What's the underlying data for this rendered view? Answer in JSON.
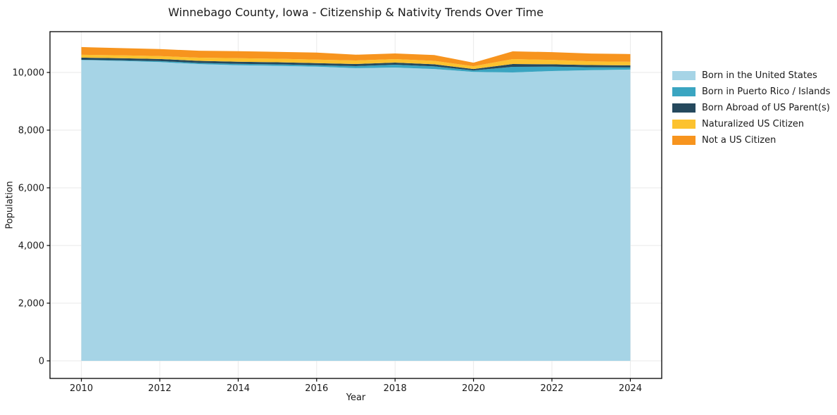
{
  "title": "Winnebago County, Iowa - Citizenship & Nativity Trends Over Time",
  "axes": {
    "xlabel": "Year",
    "ylabel": "Population"
  },
  "chart_data": {
    "type": "area",
    "stacked": true,
    "title": "Winnebago County, Iowa - Citizenship & Nativity Trends Over Time",
    "xlabel": "Year",
    "ylabel": "Population",
    "x": [
      2010,
      2011,
      2012,
      2013,
      2014,
      2015,
      2016,
      2017,
      2018,
      2019,
      2020,
      2021,
      2022,
      2023,
      2024
    ],
    "series": [
      {
        "name": "Born in the United States",
        "color": "#a6d4e6",
        "values": [
          10430,
          10400,
          10360,
          10290,
          10250,
          10230,
          10200,
          10150,
          10170,
          10120,
          10020,
          10000,
          10050,
          10080,
          10100
        ]
      },
      {
        "name": "Born in Puerto Rico / Islands",
        "color": "#3aa5c1",
        "values": [
          10,
          20,
          35,
          40,
          50,
          50,
          50,
          70,
          100,
          90,
          50,
          195,
          150,
          100,
          75
        ]
      },
      {
        "name": "Born Abroad of US Parent(s)",
        "color": "#25495d",
        "values": [
          75,
          75,
          73,
          73,
          73,
          73,
          73,
          73,
          73,
          73,
          49,
          98,
          85,
          75,
          73
        ]
      },
      {
        "name": "Naturalized US Citizen",
        "color": "#fcc22f",
        "values": [
          98,
          100,
          98,
          110,
          122,
          122,
          122,
          122,
          122,
          120,
          98,
          171,
          150,
          130,
          122
        ]
      },
      {
        "name": "Not a US Citizen",
        "color": "#f7941e",
        "values": [
          268,
          250,
          244,
          240,
          244,
          240,
          244,
          200,
          195,
          200,
          122,
          268,
          270,
          270,
          268
        ]
      }
    ],
    "xlim": [
      2009.2,
      2024.8
    ],
    "ylim": [
      -610,
      11415
    ],
    "x_ticks": [
      2010,
      2012,
      2014,
      2016,
      2018,
      2020,
      2022,
      2024
    ],
    "x_tick_labels": [
      "2010",
      "2012",
      "2014",
      "2016",
      "2018",
      "2020",
      "2022",
      "2024"
    ],
    "y_ticks": [
      0,
      2000,
      4000,
      6000,
      8000,
      10000
    ],
    "y_tick_labels": [
      "0",
      "2,000",
      "4,000",
      "6,000",
      "8,000",
      "10,000"
    ],
    "grid": true,
    "grid_color": "#eaeaea",
    "spine_color": "#000000",
    "legend_position": "right of plot"
  }
}
